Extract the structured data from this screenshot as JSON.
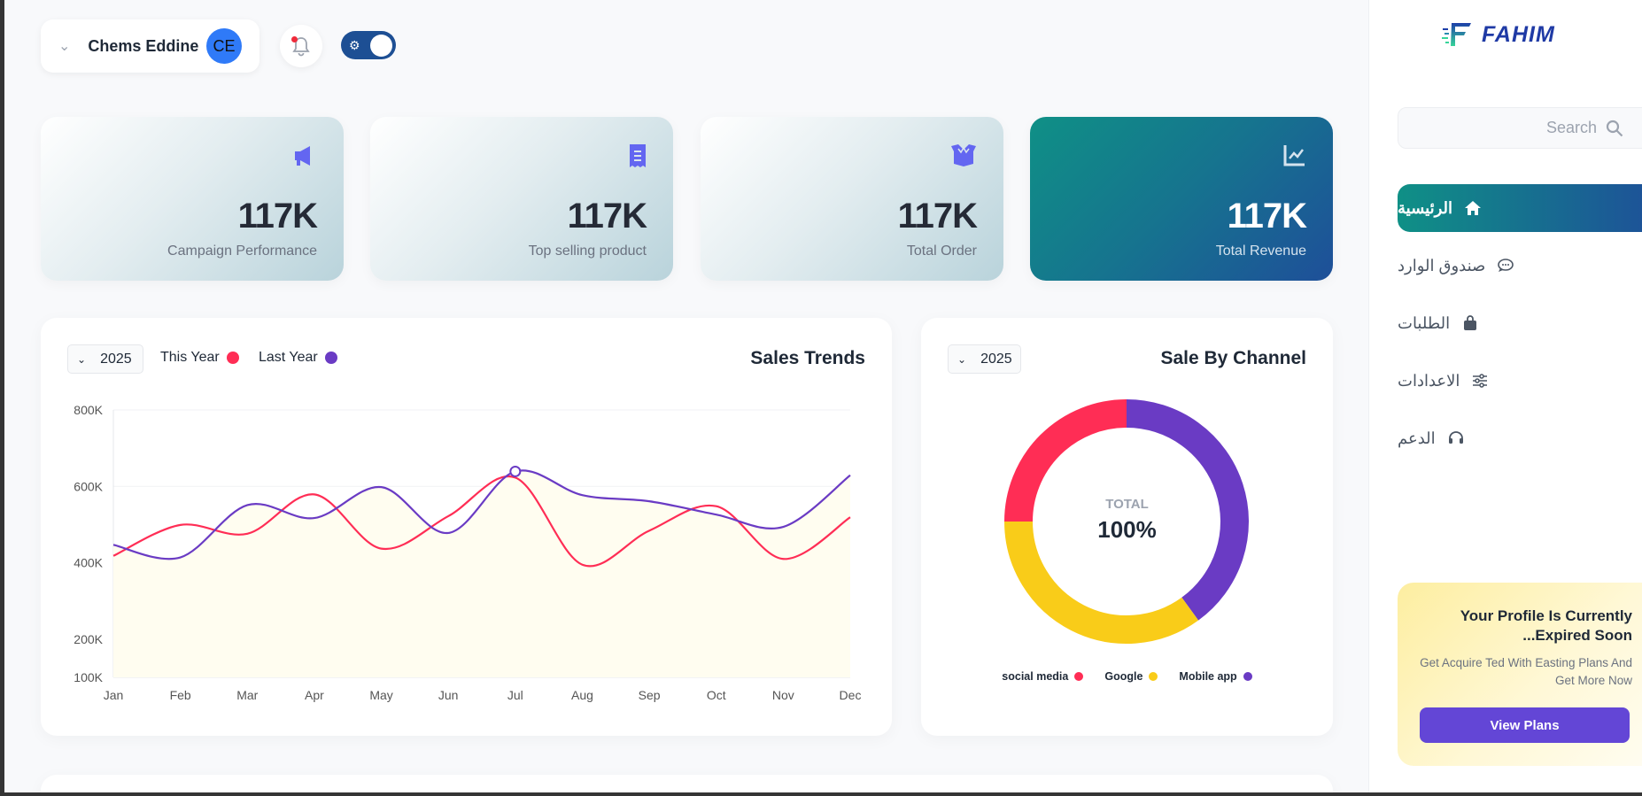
{
  "header": {
    "user_name": "Chems Eddine",
    "avatar_initials": "CE",
    "notification_icon": "bell-icon",
    "theme_toggle": {
      "icons": [
        "sun-icon",
        "moon-icon"
      ],
      "mode": "dark"
    }
  },
  "stats": [
    {
      "value": "117K",
      "label": "Campaign Performance",
      "icon": "megaphone-icon"
    },
    {
      "value": "117K",
      "label": "Top selling product",
      "icon": "receipt-icon"
    },
    {
      "value": "117K",
      "label": "Total Order",
      "icon": "box-icon"
    },
    {
      "value": "117K",
      "label": "Total Revenue",
      "icon": "chart-line-icon"
    }
  ],
  "sales_trends": {
    "title": "Sales Trends",
    "year": "2025"
  },
  "sale_by_channel": {
    "title": "Sale By Channel",
    "year": "2025",
    "center_label": "TOTAL",
    "center_value": "100%"
  },
  "sidebar": {
    "logo": "FAHIM",
    "search_placeholder": "Search",
    "items": [
      {
        "label": "الرئيسية",
        "icon": "home-icon",
        "active": true
      },
      {
        "label": "صندوق الوارد",
        "icon": "chat-icon"
      },
      {
        "label": "الطلبات",
        "icon": "bag-icon"
      },
      {
        "label": "الاعدادات",
        "icon": "sliders-icon"
      },
      {
        "label": "الدعم",
        "icon": "headset-icon"
      }
    ],
    "promo": {
      "title": "Your Profile Is Currently Expired Soon...",
      "text": "Get Acquire Ted With Easting Plans And Get More Now",
      "button": "View Plans"
    }
  },
  "colors": {
    "this_year": "#ff2d55",
    "last_year": "#6a3bc4",
    "google": "#f9cc19",
    "accent_start": "#0f9086",
    "accent_end": "#1e4f99"
  },
  "chart_data": [
    {
      "type": "line",
      "title": "Sales Trends",
      "categories": [
        "Jan",
        "Feb",
        "Mar",
        "Apr",
        "May",
        "Jun",
        "Jul",
        "Aug",
        "Sep",
        "Oct",
        "Nov",
        "Dec"
      ],
      "series": [
        {
          "name": "This Year",
          "color": "#ff2d55",
          "values": [
            418,
            499,
            476,
            579,
            437,
            522,
            623,
            395,
            484,
            548,
            410,
            519
          ]
        },
        {
          "name": "Last Year",
          "color": "#6a3bc4",
          "values": [
            447,
            414,
            551,
            517,
            598,
            478,
            639,
            577,
            561,
            526,
            494,
            629
          ]
        }
      ],
      "y_ticks": [
        "100K",
        "200K",
        "400K",
        "600K",
        "800K"
      ],
      "y_tick_values": [
        100,
        200,
        400,
        600,
        800
      ],
      "ylim": [
        100,
        800
      ],
      "y_unit": "K",
      "highlight": {
        "series": "Last Year",
        "category": "Jul"
      },
      "grid": true,
      "legend": "top-left"
    },
    {
      "type": "pie",
      "title": "Sale By Channel",
      "donut": true,
      "slices": [
        {
          "name": "Mobile app",
          "value": 40,
          "color": "#6a3bc4"
        },
        {
          "name": "Google",
          "value": 35,
          "color": "#f9cc19"
        },
        {
          "name": "social media",
          "value": 25,
          "color": "#ff2d55"
        }
      ],
      "legend_order": [
        "social media",
        "Google",
        "Mobile app"
      ],
      "legend": "bottom"
    }
  ]
}
